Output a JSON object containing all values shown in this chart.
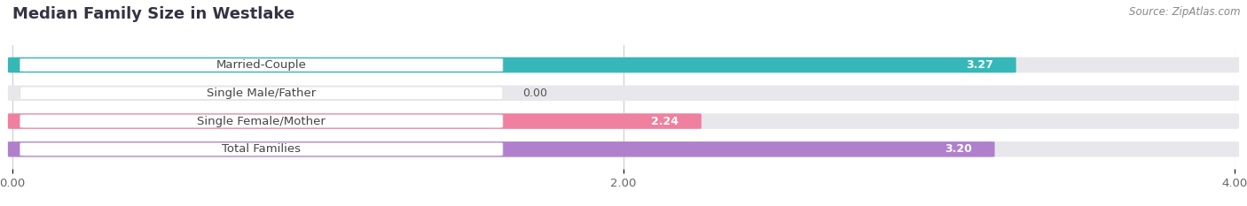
{
  "title": "Median Family Size in Westlake",
  "source": "Source: ZipAtlas.com",
  "categories": [
    "Married-Couple",
    "Single Male/Father",
    "Single Female/Mother",
    "Total Families"
  ],
  "values": [
    3.27,
    0.0,
    2.24,
    3.2
  ],
  "bar_colors": [
    "#36b8b8",
    "#a8b8e8",
    "#f080a0",
    "#b080cc"
  ],
  "bar_bg_color": "#e8e8ec",
  "xlim": [
    0,
    4.0
  ],
  "xticks": [
    0.0,
    2.0,
    4.0
  ],
  "xtick_labels": [
    "0.00",
    "2.00",
    "4.00"
  ],
  "background_color": "#ffffff",
  "bar_height": 0.52,
  "label_fontsize": 9.5,
  "title_fontsize": 13,
  "value_fontsize": 9,
  "source_fontsize": 8.5
}
